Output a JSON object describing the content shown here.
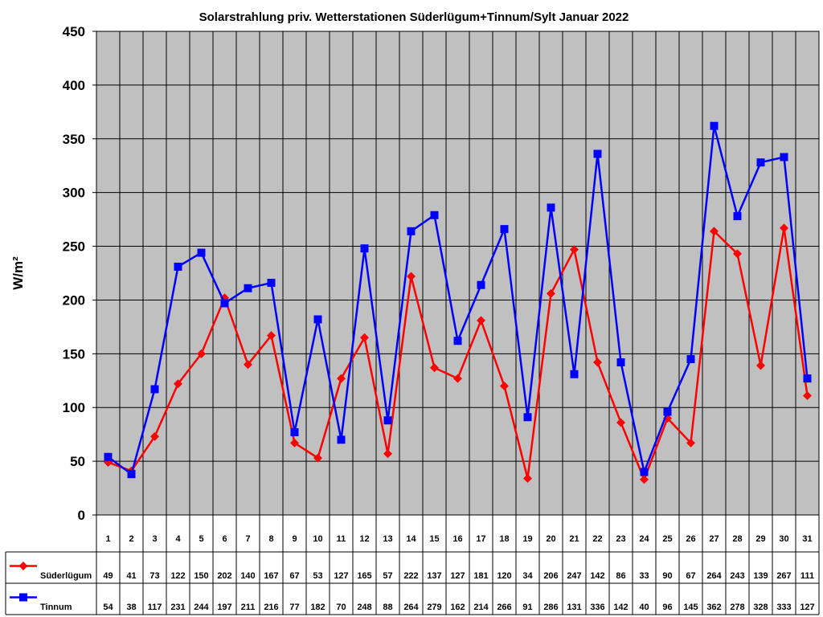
{
  "chart_data": {
    "type": "line",
    "title": "Solarstrahlung priv. Wetterstationen Süderlügum+Tinnum/Sylt Januar 2022",
    "xlabel": "",
    "ylabel": "W/m²",
    "ylim": [
      0,
      450
    ],
    "yticks": [
      0,
      50,
      100,
      150,
      200,
      250,
      300,
      350,
      400,
      450
    ],
    "grid": true,
    "legend": "data-table-left",
    "categories": [
      "1",
      "2",
      "3",
      "4",
      "5",
      "6",
      "7",
      "8",
      "9",
      "10",
      "11",
      "12",
      "13",
      "14",
      "15",
      "16",
      "17",
      "18",
      "19",
      "20",
      "21",
      "22",
      "23",
      "24",
      "25",
      "26",
      "27",
      "28",
      "29",
      "30",
      "31"
    ],
    "series": [
      {
        "name": "Süderlügum",
        "color": "#ff0000",
        "marker": "diamond",
        "values": [
          49,
          41,
          73,
          122,
          150,
          202,
          140,
          167,
          67,
          53,
          127,
          165,
          57,
          222,
          137,
          127,
          181,
          120,
          34,
          206,
          247,
          142,
          86,
          33,
          90,
          67,
          264,
          243,
          139,
          267,
          111
        ]
      },
      {
        "name": "Tinnum",
        "color": "#0000ff",
        "marker": "square",
        "values": [
          54,
          38,
          117,
          231,
          244,
          197,
          211,
          216,
          77,
          182,
          70,
          248,
          88,
          264,
          279,
          162,
          214,
          266,
          91,
          286,
          131,
          336,
          142,
          40,
          96,
          145,
          362,
          278,
          328,
          333,
          127
        ]
      }
    ],
    "plot_background": "#c0c0c0"
  }
}
